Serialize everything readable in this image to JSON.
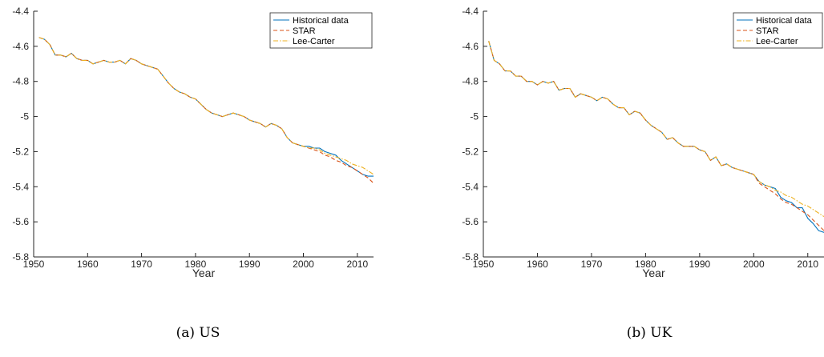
{
  "chart_data": [
    {
      "type": "line",
      "caption": "(a) US",
      "xlabel": "Year",
      "ylabel": "",
      "xlim": [
        1950,
        2013
      ],
      "ylim": [
        -5.8,
        -4.4
      ],
      "xticks": [
        1950,
        1960,
        1970,
        1980,
        1990,
        2000,
        2010
      ],
      "yticks": [
        -4.4,
        -4.6,
        -4.8,
        -5,
        -5.2,
        -5.4,
        -5.6,
        -5.8
      ],
      "legend_position": "top-right",
      "series": [
        {
          "name": "Historical data",
          "color": "#0072BD",
          "dash": "solid",
          "x": [
            1951,
            1952,
            1953,
            1954,
            1955,
            1956,
            1957,
            1958,
            1959,
            1960,
            1961,
            1962,
            1963,
            1964,
            1965,
            1966,
            1967,
            1968,
            1969,
            1970,
            1971,
            1972,
            1973,
            1974,
            1975,
            1976,
            1977,
            1978,
            1979,
            1980,
            1981,
            1982,
            1983,
            1984,
            1985,
            1986,
            1987,
            1988,
            1989,
            1990,
            1991,
            1992,
            1993,
            1994,
            1995,
            1996,
            1997,
            1998,
            1999,
            2000,
            2001,
            2002,
            2003,
            2004,
            2005,
            2006,
            2007,
            2008,
            2009,
            2010,
            2011,
            2012,
            2013
          ],
          "y": [
            -4.55,
            -4.56,
            -4.59,
            -4.65,
            -4.65,
            -4.66,
            -4.64,
            -4.67,
            -4.68,
            -4.68,
            -4.7,
            -4.69,
            -4.68,
            -4.69,
            -4.69,
            -4.68,
            -4.7,
            -4.67,
            -4.68,
            -4.7,
            -4.71,
            -4.72,
            -4.73,
            -4.77,
            -4.81,
            -4.84,
            -4.86,
            -4.87,
            -4.89,
            -4.9,
            -4.93,
            -4.96,
            -4.98,
            -4.99,
            -5.0,
            -4.99,
            -4.98,
            -4.99,
            -5.0,
            -5.02,
            -5.03,
            -5.04,
            -5.06,
            -5.04,
            -5.05,
            -5.07,
            -5.12,
            -5.15,
            -5.16,
            -5.17,
            -5.17,
            -5.18,
            -5.18,
            -5.2,
            -5.21,
            -5.22,
            -5.25,
            -5.27,
            -5.29,
            -5.31,
            -5.33,
            -5.34,
            -5.34
          ]
        },
        {
          "name": "STAR",
          "color": "#D95319",
          "dash": "dashed",
          "x": [
            1951,
            1952,
            1953,
            1954,
            1955,
            1956,
            1957,
            1958,
            1959,
            1960,
            1961,
            1962,
            1963,
            1964,
            1965,
            1966,
            1967,
            1968,
            1969,
            1970,
            1971,
            1972,
            1973,
            1974,
            1975,
            1976,
            1977,
            1978,
            1979,
            1980,
            1981,
            1982,
            1983,
            1984,
            1985,
            1986,
            1987,
            1988,
            1989,
            1990,
            1991,
            1992,
            1993,
            1994,
            1995,
            1996,
            1997,
            1998,
            1999,
            2000,
            2001,
            2002,
            2003,
            2004,
            2005,
            2006,
            2007,
            2008,
            2009,
            2010,
            2011,
            2012,
            2013
          ],
          "y": [
            -4.55,
            -4.56,
            -4.59,
            -4.65,
            -4.65,
            -4.66,
            -4.64,
            -4.67,
            -4.68,
            -4.68,
            -4.7,
            -4.69,
            -4.68,
            -4.69,
            -4.69,
            -4.68,
            -4.7,
            -4.67,
            -4.68,
            -4.7,
            -4.71,
            -4.72,
            -4.73,
            -4.77,
            -4.81,
            -4.84,
            -4.86,
            -4.87,
            -4.89,
            -4.9,
            -4.93,
            -4.96,
            -4.98,
            -4.99,
            -5.0,
            -4.99,
            -4.98,
            -4.99,
            -5.0,
            -5.02,
            -5.03,
            -5.04,
            -5.06,
            -5.04,
            -5.05,
            -5.07,
            -5.12,
            -5.15,
            -5.16,
            -5.17,
            -5.18,
            -5.19,
            -5.2,
            -5.22,
            -5.23,
            -5.25,
            -5.26,
            -5.28,
            -5.29,
            -5.31,
            -5.33,
            -5.35,
            -5.38
          ]
        },
        {
          "name": "Lee-Carter",
          "color": "#EDB120",
          "dash": "dashdot",
          "x": [
            1951,
            1952,
            1953,
            1954,
            1955,
            1956,
            1957,
            1958,
            1959,
            1960,
            1961,
            1962,
            1963,
            1964,
            1965,
            1966,
            1967,
            1968,
            1969,
            1970,
            1971,
            1972,
            1973,
            1974,
            1975,
            1976,
            1977,
            1978,
            1979,
            1980,
            1981,
            1982,
            1983,
            1984,
            1985,
            1986,
            1987,
            1988,
            1989,
            1990,
            1991,
            1992,
            1993,
            1994,
            1995,
            1996,
            1997,
            1998,
            1999,
            2000,
            2001,
            2002,
            2003,
            2004,
            2005,
            2006,
            2007,
            2008,
            2009,
            2010,
            2011,
            2012,
            2013
          ],
          "y": [
            -4.55,
            -4.56,
            -4.59,
            -4.65,
            -4.65,
            -4.66,
            -4.64,
            -4.67,
            -4.68,
            -4.68,
            -4.7,
            -4.69,
            -4.68,
            -4.69,
            -4.69,
            -4.68,
            -4.7,
            -4.67,
            -4.68,
            -4.7,
            -4.71,
            -4.72,
            -4.73,
            -4.77,
            -4.81,
            -4.84,
            -4.86,
            -4.87,
            -4.89,
            -4.9,
            -4.93,
            -4.96,
            -4.98,
            -4.99,
            -5.0,
            -4.99,
            -4.98,
            -4.99,
            -5.0,
            -5.02,
            -5.03,
            -5.04,
            -5.06,
            -5.04,
            -5.05,
            -5.07,
            -5.12,
            -5.15,
            -5.16,
            -5.17,
            -5.18,
            -5.18,
            -5.19,
            -5.21,
            -5.22,
            -5.23,
            -5.24,
            -5.25,
            -5.27,
            -5.28,
            -5.29,
            -5.31,
            -5.33
          ]
        }
      ]
    },
    {
      "type": "line",
      "caption": "(b) UK",
      "xlabel": "Year",
      "ylabel": "",
      "xlim": [
        1950,
        2013
      ],
      "ylim": [
        -5.8,
        -4.4
      ],
      "xticks": [
        1950,
        1960,
        1970,
        1980,
        1990,
        2000,
        2010
      ],
      "yticks": [
        -4.4,
        -4.6,
        -4.8,
        -5,
        -5.2,
        -5.4,
        -5.6,
        -5.8
      ],
      "legend_position": "top-right",
      "series": [
        {
          "name": "Historical data",
          "color": "#0072BD",
          "dash": "solid",
          "x": [
            1951,
            1952,
            1953,
            1954,
            1955,
            1956,
            1957,
            1958,
            1959,
            1960,
            1961,
            1962,
            1963,
            1964,
            1965,
            1966,
            1967,
            1968,
            1969,
            1970,
            1971,
            1972,
            1973,
            1974,
            1975,
            1976,
            1977,
            1978,
            1979,
            1980,
            1981,
            1982,
            1983,
            1984,
            1985,
            1986,
            1987,
            1988,
            1989,
            1990,
            1991,
            1992,
            1993,
            1994,
            1995,
            1996,
            1997,
            1998,
            1999,
            2000,
            2001,
            2002,
            2003,
            2004,
            2005,
            2006,
            2007,
            2008,
            2009,
            2010,
            2011,
            2012,
            2013
          ],
          "y": [
            -4.57,
            -4.68,
            -4.7,
            -4.74,
            -4.74,
            -4.77,
            -4.77,
            -4.8,
            -4.8,
            -4.82,
            -4.8,
            -4.81,
            -4.8,
            -4.85,
            -4.84,
            -4.84,
            -4.89,
            -4.87,
            -4.88,
            -4.89,
            -4.91,
            -4.89,
            -4.9,
            -4.93,
            -4.95,
            -4.95,
            -4.99,
            -4.97,
            -4.98,
            -5.02,
            -5.05,
            -5.07,
            -5.09,
            -5.13,
            -5.12,
            -5.15,
            -5.17,
            -5.17,
            -5.17,
            -5.19,
            -5.2,
            -5.25,
            -5.23,
            -5.28,
            -5.27,
            -5.29,
            -5.3,
            -5.31,
            -5.32,
            -5.33,
            -5.37,
            -5.39,
            -5.4,
            -5.41,
            -5.46,
            -5.48,
            -5.49,
            -5.52,
            -5.52,
            -5.58,
            -5.61,
            -5.65,
            -5.66
          ]
        },
        {
          "name": "STAR",
          "color": "#D95319",
          "dash": "dashed",
          "x": [
            1951,
            1952,
            1953,
            1954,
            1955,
            1956,
            1957,
            1958,
            1959,
            1960,
            1961,
            1962,
            1963,
            1964,
            1965,
            1966,
            1967,
            1968,
            1969,
            1970,
            1971,
            1972,
            1973,
            1974,
            1975,
            1976,
            1977,
            1978,
            1979,
            1980,
            1981,
            1982,
            1983,
            1984,
            1985,
            1986,
            1987,
            1988,
            1989,
            1990,
            1991,
            1992,
            1993,
            1994,
            1995,
            1996,
            1997,
            1998,
            1999,
            2000,
            2001,
            2002,
            2003,
            2004,
            2005,
            2006,
            2007,
            2008,
            2009,
            2010,
            2011,
            2012,
            2013
          ],
          "y": [
            -4.57,
            -4.68,
            -4.7,
            -4.74,
            -4.74,
            -4.77,
            -4.77,
            -4.8,
            -4.8,
            -4.82,
            -4.8,
            -4.81,
            -4.8,
            -4.85,
            -4.84,
            -4.84,
            -4.89,
            -4.87,
            -4.88,
            -4.89,
            -4.91,
            -4.89,
            -4.9,
            -4.93,
            -4.95,
            -4.95,
            -4.99,
            -4.97,
            -4.98,
            -5.02,
            -5.05,
            -5.07,
            -5.09,
            -5.13,
            -5.12,
            -5.15,
            -5.17,
            -5.17,
            -5.17,
            -5.19,
            -5.2,
            -5.25,
            -5.23,
            -5.28,
            -5.27,
            -5.29,
            -5.3,
            -5.31,
            -5.32,
            -5.33,
            -5.38,
            -5.4,
            -5.42,
            -5.44,
            -5.47,
            -5.49,
            -5.5,
            -5.52,
            -5.54,
            -5.56,
            -5.59,
            -5.62,
            -5.65
          ]
        },
        {
          "name": "Lee-Carter",
          "color": "#EDB120",
          "dash": "dashdot",
          "x": [
            1951,
            1952,
            1953,
            1954,
            1955,
            1956,
            1957,
            1958,
            1959,
            1960,
            1961,
            1962,
            1963,
            1964,
            1965,
            1966,
            1967,
            1968,
            1969,
            1970,
            1971,
            1972,
            1973,
            1974,
            1975,
            1976,
            1977,
            1978,
            1979,
            1980,
            1981,
            1982,
            1983,
            1984,
            1985,
            1986,
            1987,
            1988,
            1989,
            1990,
            1991,
            1992,
            1993,
            1994,
            1995,
            1996,
            1997,
            1998,
            1999,
            2000,
            2001,
            2002,
            2003,
            2004,
            2005,
            2006,
            2007,
            2008,
            2009,
            2010,
            2011,
            2012,
            2013
          ],
          "y": [
            -4.57,
            -4.68,
            -4.7,
            -4.74,
            -4.74,
            -4.77,
            -4.77,
            -4.8,
            -4.8,
            -4.82,
            -4.8,
            -4.81,
            -4.8,
            -4.85,
            -4.84,
            -4.84,
            -4.89,
            -4.87,
            -4.88,
            -4.89,
            -4.91,
            -4.89,
            -4.9,
            -4.93,
            -4.95,
            -4.95,
            -4.99,
            -4.97,
            -4.98,
            -5.02,
            -5.05,
            -5.07,
            -5.09,
            -5.13,
            -5.12,
            -5.15,
            -5.17,
            -5.17,
            -5.17,
            -5.19,
            -5.2,
            -5.25,
            -5.23,
            -5.28,
            -5.27,
            -5.29,
            -5.3,
            -5.31,
            -5.32,
            -5.33,
            -5.37,
            -5.39,
            -5.4,
            -5.42,
            -5.43,
            -5.45,
            -5.46,
            -5.48,
            -5.5,
            -5.51,
            -5.53,
            -5.55,
            -5.57
          ]
        }
      ]
    }
  ]
}
